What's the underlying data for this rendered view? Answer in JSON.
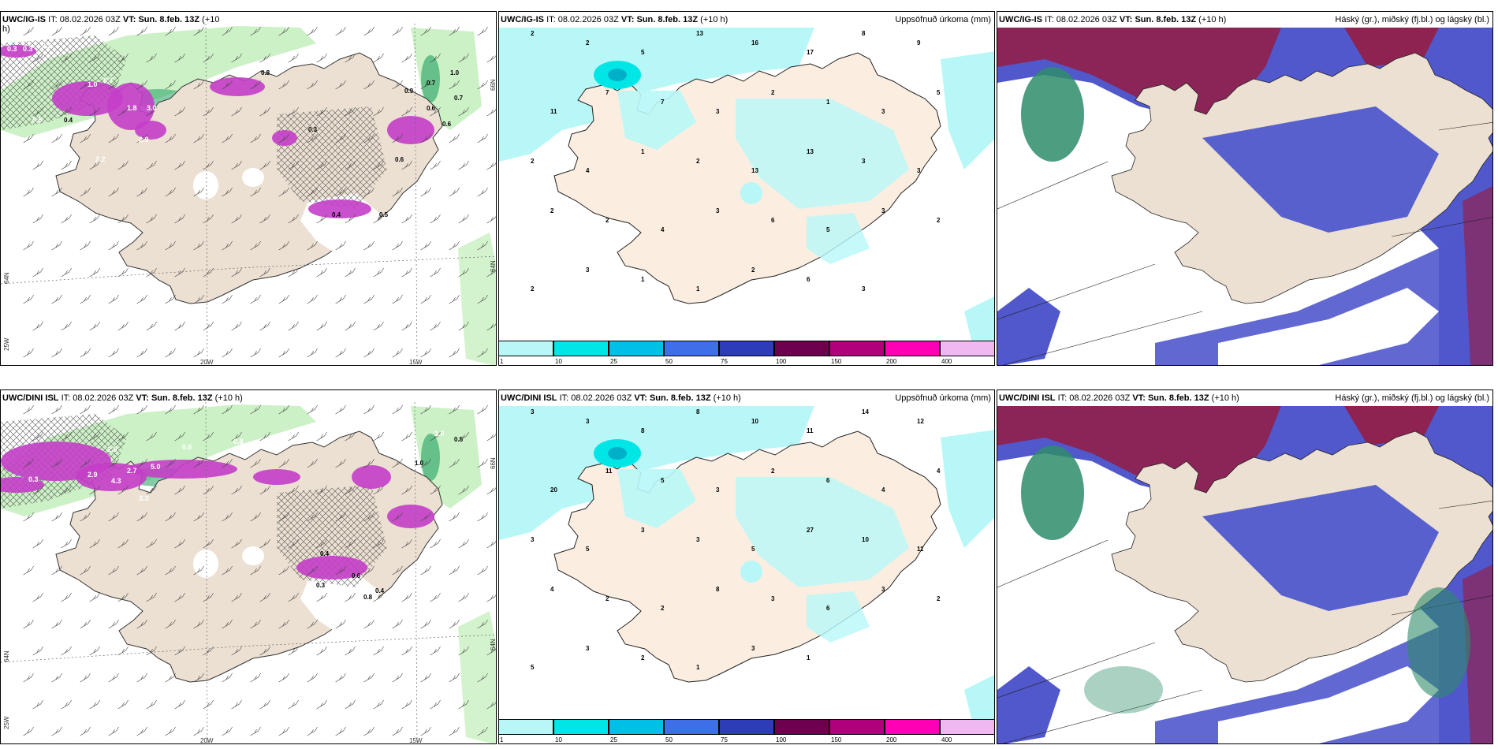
{
  "top": {
    "left": {
      "model": "UWC/IG-IS",
      "it_label": "IT:",
      "it_value": "08.02.2026 03Z",
      "vt_label": "VT:",
      "vt_value": "Sun. 8.feb. 13Z",
      "lead": "(+10",
      "lead2": "h)"
    },
    "mid": {
      "model": "UWC/IG-IS",
      "it_label": "IT:",
      "it_value": "08.02.2026 03Z",
      "vt_label": "VT:",
      "vt_value": "Sun. 8.feb. 13Z",
      "lead": "(+10 h)",
      "right_title": "Uppsöfnuð úrkoma (mm)"
    },
    "right": {
      "model": "UWC/IG-IS",
      "it_label": "IT:",
      "it_value": "08.02.2026 03Z",
      "vt_label": "VT:",
      "vt_value": "Sun. 8.feb. 13Z",
      "lead": "(+10 h)",
      "right_title": "Háský (gr.), miðský (fj.bl.) og lágský (bl.)"
    }
  },
  "bottom": {
    "left": {
      "model": "UWC/DINI ISL",
      "it_label": "IT:",
      "it_value": "08.02.2026 03Z",
      "vt_label": "VT:",
      "vt_value": "Sun. 8.feb. 13Z",
      "lead": "(+10 h)"
    },
    "mid": {
      "model": "UWC/DINI ISL",
      "it_label": "IT:",
      "it_value": "08.02.2026 03Z",
      "vt_label": "VT:",
      "vt_value": "Sun. 8.feb. 13Z",
      "lead": "(+10 h)",
      "right_title": "Uppsöfnuð úrkoma (mm)"
    },
    "right": {
      "model": "UWC/DINI ISL",
      "it_label": "IT:",
      "it_value": "08.02.2026 03Z",
      "vt_label": "VT:",
      "vt_value": "Sun. 8.feb. 13Z",
      "lead": "(+10 h)",
      "right_title": "Háský (gr.), miðský (fj.bl.) og lágský (bl.)"
    }
  },
  "axes": {
    "lon_20": "20W",
    "lon_15": "15W",
    "lat_66": "66N",
    "lat_64": "64N",
    "lon_25": "25W"
  },
  "colorbar": {
    "ticks": [
      "1",
      "10",
      "25",
      "50",
      "75",
      "100",
      "150",
      "200",
      "400"
    ],
    "colors": [
      "#b8f7f7",
      "#00e6e6",
      "#00c0e8",
      "#3e6ee8",
      "#2d3cb8",
      "#6e0050",
      "#b0007c",
      "#ff00b4",
      "#f0b8f0"
    ]
  },
  "precip_values_top": [
    "2",
    "2",
    "5",
    "13",
    "16",
    "17",
    "8",
    "9",
    "11",
    "7",
    "7",
    "3",
    "2",
    "1",
    "3",
    "5",
    "2",
    "4",
    "1",
    "2",
    "13",
    "13",
    "3",
    "3",
    "2",
    "2",
    "4",
    "3",
    "6",
    "5",
    "3",
    "2",
    "2",
    "3",
    "1",
    "1",
    "2",
    "6",
    "3"
  ],
  "precip_values_bottom": [
    "3",
    "3",
    "8",
    "8",
    "10",
    "11",
    "14",
    "12",
    "20",
    "11",
    "5",
    "3",
    "2",
    "6",
    "4",
    "4",
    "3",
    "5",
    "3",
    "3",
    "5",
    "27",
    "10",
    "11",
    "4",
    "2",
    "2",
    "8",
    "3",
    "6",
    "3",
    "2",
    "5",
    "3",
    "2",
    "1",
    "3",
    "1"
  ],
  "snow_values_top": [
    "0.3",
    "0.3",
    "0.3",
    "0.6",
    "1.0",
    "0.7",
    "1.8",
    "3.0",
    "2.9",
    "2.2",
    "0.9",
    "0.8",
    "0.7",
    "1.0",
    "0.6",
    "0.4",
    "0.7",
    "0.6",
    "0.3",
    "0.4",
    "0.6",
    "0.5"
  ],
  "snow_values_bottom": [
    "0.3",
    "2.5",
    "2.9",
    "2.7",
    "5.0",
    "4.3",
    "3.3",
    "0.6",
    "0.8",
    "1.0",
    "0.5",
    "1.0",
    "0.4",
    "0.3",
    "0.6",
    "0.8",
    "0.4"
  ],
  "colors": {
    "land": "#ece0d2",
    "snow_purple": "#c43ec8",
    "green_light": "#c8f0c0",
    "green_dark": "#22a060",
    "cyan": "#b8f7f7",
    "cloud_high": "#8e2250",
    "cloud_mid": "#5058cc",
    "cloud_low": "#2e8c6a"
  }
}
